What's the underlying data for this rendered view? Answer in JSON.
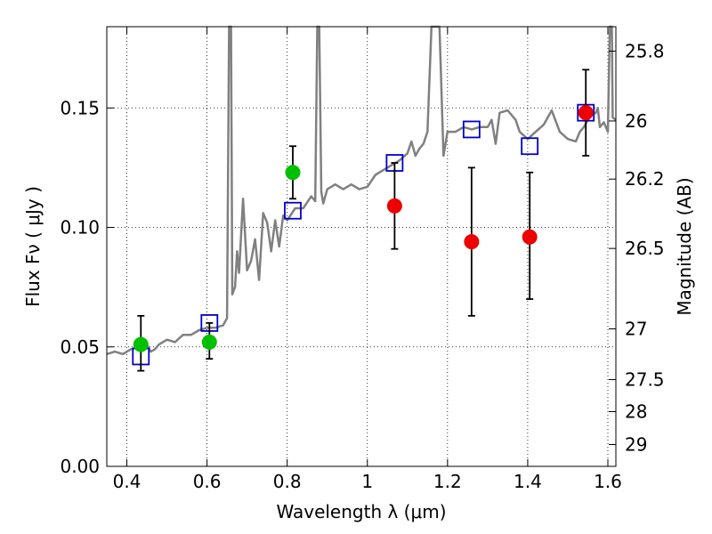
{
  "chart_data": {
    "type": "scatter",
    "xlabel": "Wavelength  λ (μm)",
    "ylabel": "Flux  Fν  ( μJy )",
    "y2label": "Magnitude (AB)",
    "xlim": [
      0.35,
      1.62
    ],
    "ylim": [
      0.0,
      0.184
    ],
    "grid": true,
    "x_ticks": [
      {
        "value": 0.4,
        "label": "0.4"
      },
      {
        "value": 0.6,
        "label": "0.6"
      },
      {
        "value": 0.8,
        "label": "0.8"
      },
      {
        "value": 1.0,
        "label": "1"
      },
      {
        "value": 1.2,
        "label": "1.2"
      },
      {
        "value": 1.4,
        "label": "1.4"
      },
      {
        "value": 1.6,
        "label": "1.6"
      }
    ],
    "y_ticks": [
      {
        "value": 0.0,
        "label": "0.00"
      },
      {
        "value": 0.05,
        "label": "0.05"
      },
      {
        "value": 0.1,
        "label": "0.10"
      },
      {
        "value": 0.15,
        "label": "0.15"
      }
    ],
    "y2_ticks": [
      {
        "mag": 25.8,
        "label": "25.8"
      },
      {
        "mag": 26.0,
        "label": "26"
      },
      {
        "mag": 26.2,
        "label": "26.2"
      },
      {
        "mag": 26.5,
        "label": "26.5"
      },
      {
        "mag": 27.0,
        "label": "27"
      },
      {
        "mag": 27.5,
        "label": "27.5"
      },
      {
        "mag": 28.0,
        "label": "28"
      },
      {
        "mag": 29.0,
        "label": "29"
      }
    ],
    "series": [
      {
        "kind": "line",
        "color": "#808080",
        "points": [
          [
            0.35,
            0.047
          ],
          [
            0.37,
            0.048
          ],
          [
            0.39,
            0.047
          ],
          [
            0.41,
            0.049
          ],
          [
            0.43,
            0.05
          ],
          [
            0.45,
            0.051
          ],
          [
            0.46,
            0.048
          ],
          [
            0.47,
            0.049
          ],
          [
            0.48,
            0.051
          ],
          [
            0.5,
            0.053
          ],
          [
            0.52,
            0.052
          ],
          [
            0.54,
            0.055
          ],
          [
            0.56,
            0.055
          ],
          [
            0.58,
            0.057
          ],
          [
            0.6,
            0.058
          ],
          [
            0.62,
            0.058
          ],
          [
            0.64,
            0.059
          ],
          [
            0.65,
            0.062
          ],
          [
            0.655,
            0.184
          ],
          [
            0.66,
            0.184
          ],
          [
            0.663,
            0.072
          ],
          [
            0.67,
            0.075
          ],
          [
            0.675,
            0.09
          ],
          [
            0.68,
            0.081
          ],
          [
            0.69,
            0.112
          ],
          [
            0.7,
            0.082
          ],
          [
            0.71,
            0.086
          ],
          [
            0.72,
            0.095
          ],
          [
            0.73,
            0.078
          ],
          [
            0.74,
            0.106
          ],
          [
            0.75,
            0.102
          ],
          [
            0.76,
            0.09
          ],
          [
            0.77,
            0.103
          ],
          [
            0.78,
            0.092
          ],
          [
            0.79,
            0.105
          ],
          [
            0.8,
            0.103
          ],
          [
            0.82,
            0.108
          ],
          [
            0.84,
            0.108
          ],
          [
            0.86,
            0.113
          ],
          [
            0.87,
            0.111
          ],
          [
            0.875,
            0.184
          ],
          [
            0.88,
            0.184
          ],
          [
            0.885,
            0.115
          ],
          [
            0.89,
            0.11
          ],
          [
            0.9,
            0.116
          ],
          [
            0.92,
            0.118
          ],
          [
            0.94,
            0.116
          ],
          [
            0.96,
            0.118
          ],
          [
            0.98,
            0.116
          ],
          [
            1.0,
            0.117
          ],
          [
            1.02,
            0.122
          ],
          [
            1.04,
            0.124
          ],
          [
            1.06,
            0.126
          ],
          [
            1.08,
            0.128
          ],
          [
            1.1,
            0.131
          ],
          [
            1.11,
            0.136
          ],
          [
            1.12,
            0.13
          ],
          [
            1.13,
            0.133
          ],
          [
            1.14,
            0.135
          ],
          [
            1.15,
            0.14
          ],
          [
            1.16,
            0.184
          ],
          [
            1.18,
            0.184
          ],
          [
            1.19,
            0.13
          ],
          [
            1.2,
            0.14
          ],
          [
            1.22,
            0.14
          ],
          [
            1.24,
            0.142
          ],
          [
            1.26,
            0.141
          ],
          [
            1.28,
            0.142
          ],
          [
            1.3,
            0.142
          ],
          [
            1.31,
            0.145
          ],
          [
            1.32,
            0.135
          ],
          [
            1.33,
            0.148
          ],
          [
            1.35,
            0.149
          ],
          [
            1.37,
            0.145
          ],
          [
            1.38,
            0.14
          ],
          [
            1.4,
            0.137
          ],
          [
            1.42,
            0.14
          ],
          [
            1.44,
            0.143
          ],
          [
            1.46,
            0.149
          ],
          [
            1.48,
            0.14
          ],
          [
            1.5,
            0.137
          ],
          [
            1.52,
            0.136
          ],
          [
            1.53,
            0.14
          ],
          [
            1.54,
            0.142
          ],
          [
            1.55,
            0.145
          ],
          [
            1.56,
            0.147
          ],
          [
            1.57,
            0.148
          ],
          [
            1.575,
            0.15
          ],
          [
            1.58,
            0.142
          ],
          [
            1.59,
            0.144
          ],
          [
            1.6,
            0.14
          ],
          [
            1.605,
            0.184
          ],
          [
            1.61,
            0.184
          ],
          [
            1.612,
            0.146
          ],
          [
            1.62,
            0.145
          ]
        ]
      },
      {
        "kind": "open-square",
        "color": "#0000cc",
        "points": [
          {
            "x": 0.435,
            "y": 0.046
          },
          {
            "x": 0.606,
            "y": 0.06
          },
          {
            "x": 0.814,
            "y": 0.107
          },
          {
            "x": 1.068,
            "y": 0.127
          },
          {
            "x": 1.26,
            "y": 0.141
          },
          {
            "x": 1.405,
            "y": 0.134
          },
          {
            "x": 1.545,
            "y": 0.148
          }
        ]
      },
      {
        "kind": "filled-circle",
        "color": "#00c000",
        "points": [
          {
            "x": 0.435,
            "y": 0.051,
            "err_low": 0.011,
            "err_high": 0.012
          },
          {
            "x": 0.606,
            "y": 0.052,
            "err_low": 0.007,
            "err_high": 0.008
          },
          {
            "x": 0.814,
            "y": 0.123,
            "err_low": 0.011,
            "err_high": 0.011
          }
        ]
      },
      {
        "kind": "filled-circle",
        "color": "#ee0000",
        "points": [
          {
            "x": 1.068,
            "y": 0.109,
            "err_low": 0.018,
            "err_high": 0.018
          },
          {
            "x": 1.26,
            "y": 0.094,
            "err_low": 0.031,
            "err_high": 0.031
          },
          {
            "x": 1.405,
            "y": 0.096,
            "err_low": 0.026,
            "err_high": 0.027
          },
          {
            "x": 1.545,
            "y": 0.148,
            "err_low": 0.018,
            "err_high": 0.018
          }
        ]
      }
    ]
  }
}
